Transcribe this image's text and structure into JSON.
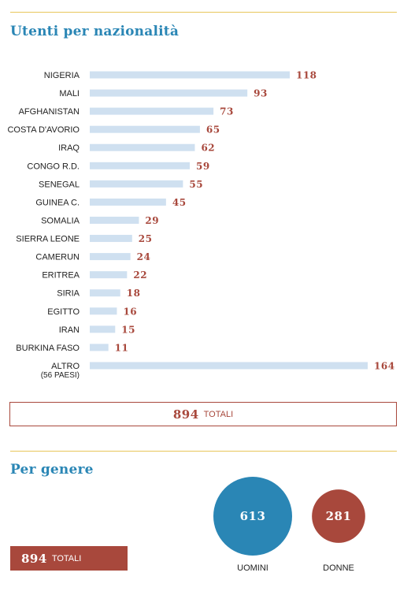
{
  "section1": {
    "title": "Utenti per nazionalità"
  },
  "chart_data": [
    {
      "type": "bar",
      "orientation": "horizontal",
      "title": "Utenti per nazionalità",
      "categories": [
        "NIGERIA",
        "MALI",
        "AFGHANISTAN",
        "COSTA D'AVORIO",
        "IRAQ",
        "CONGO R.D.",
        "SENEGAL",
        "GUINEA C.",
        "SOMALIA",
        "SIERRA LEONE",
        "CAMERUN",
        "ERITREA",
        "SIRIA",
        "EGITTO",
        "IRAN",
        "BURKINA FASO",
        "ALTRO"
      ],
      "category_sublabels": {
        "ALTRO": "(56 PAESI)"
      },
      "values": [
        118,
        93,
        73,
        65,
        62,
        59,
        55,
        45,
        29,
        25,
        24,
        22,
        18,
        16,
        15,
        11,
        164
      ],
      "xlim": [
        0,
        164
      ],
      "colors": {
        "bar": "#cfe0f0",
        "value_label": "#a8483c"
      }
    },
    {
      "type": "bubble",
      "title": "Per genere",
      "categories": [
        "UOMINI",
        "DONNE"
      ],
      "values": [
        613,
        281
      ],
      "colors": [
        "#2a86b5",
        "#a8483c"
      ]
    }
  ],
  "total_box": {
    "value": "894",
    "label": "TOTALI"
  },
  "section2": {
    "title": "Per genere"
  },
  "gender_total": {
    "value": "894",
    "label": "TOTALI"
  }
}
